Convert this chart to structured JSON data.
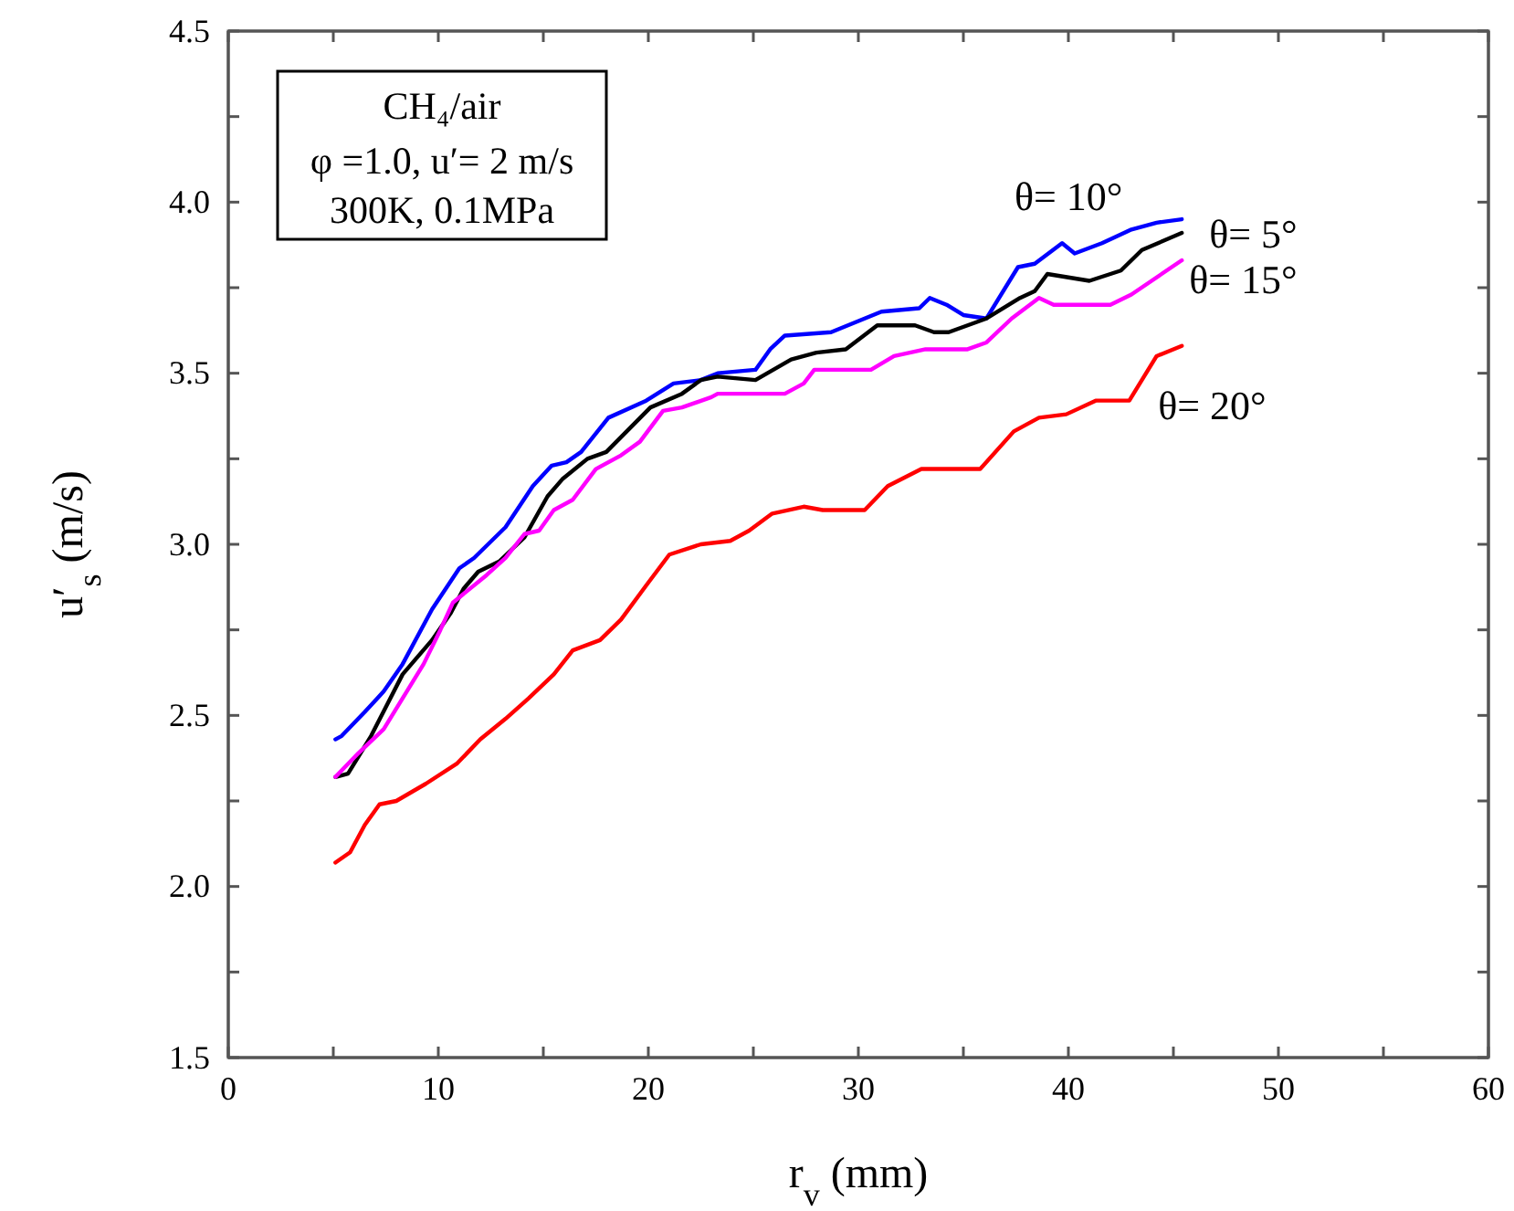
{
  "chart_data": {
    "type": "line",
    "xlabel": "r$_{v}$ (mm)",
    "ylabel": "u′$_{s}$ (m/s)",
    "xlim": [
      0,
      60
    ],
    "ylim": [
      1.5,
      4.5
    ],
    "xticks": [
      0,
      {
        "value": 5,
        "label": null
      },
      10,
      {
        "value": 15,
        "label": null
      },
      20,
      {
        "value": 25,
        "label": null
      },
      30,
      {
        "value": 35,
        "label": null
      },
      40,
      {
        "value": 45,
        "label": null
      },
      50,
      {
        "value": 55,
        "label": null
      },
      60
    ],
    "yticks": [
      1.5,
      {
        "value": 1.75,
        "label": null
      },
      {
        "value": 2,
        "label": "2.0"
      },
      {
        "value": 2.25,
        "label": null
      },
      2.5,
      {
        "value": 2.75,
        "label": null
      },
      {
        "value": 3,
        "label": "3.0"
      },
      {
        "value": 3.25,
        "label": null
      },
      3.5,
      {
        "value": 3.75,
        "label": null
      },
      {
        "value": 4,
        "label": "4.0"
      },
      {
        "value": 4.25,
        "label": null
      },
      4.5
    ],
    "grid": false,
    "legend": false,
    "marker": "none",
    "line_style": "solid",
    "annotations": [
      "CH₄/air",
      "φ =1.0, u′= 2 m/s",
      "300K, 0.1MPa"
    ],
    "series": [
      {
        "name": "θ= 10°",
        "color": "#0000ff",
        "x": [
          5.1,
          5.4,
          6.5,
          7.4,
          8.3,
          9.7,
          11.0,
          11.7,
          13.2,
          14.5,
          15.4,
          16.1,
          16.8,
          18.1,
          19.9,
          21.2,
          22.5,
          23.3,
          25.1,
          25.8,
          26.5,
          28.7,
          31.1,
          32.9,
          33.4,
          34.2,
          35.0,
          36.1,
          37.6,
          38.4,
          39.7,
          40.3,
          41.6,
          43.0,
          44.2,
          45.4
        ],
        "values": [
          2.43,
          2.44,
          2.51,
          2.57,
          2.65,
          2.81,
          2.93,
          2.96,
          3.05,
          3.17,
          3.23,
          3.24,
          3.27,
          3.37,
          3.42,
          3.47,
          3.48,
          3.5,
          3.51,
          3.57,
          3.61,
          3.62,
          3.68,
          3.69,
          3.72,
          3.7,
          3.67,
          3.66,
          3.81,
          3.82,
          3.88,
          3.85,
          3.88,
          3.92,
          3.94,
          3.95
        ]
      },
      {
        "name": "θ= 5°",
        "color": "#000000",
        "x": [
          5.1,
          5.7,
          6.8,
          8.3,
          9.7,
          10.6,
          11.2,
          11.9,
          12.9,
          14.1,
          15.2,
          15.9,
          17.1,
          18.0,
          20.1,
          21.6,
          22.5,
          23.3,
          25.1,
          26.8,
          28.0,
          29.4,
          30.9,
          32.7,
          33.6,
          34.3,
          36.1,
          37.7,
          38.4,
          39.0,
          41.0,
          42.5,
          43.5,
          45.4
        ],
        "values": [
          2.32,
          2.33,
          2.44,
          2.62,
          2.72,
          2.8,
          2.87,
          2.92,
          2.95,
          3.02,
          3.14,
          3.19,
          3.25,
          3.27,
          3.4,
          3.44,
          3.48,
          3.49,
          3.48,
          3.54,
          3.56,
          3.57,
          3.64,
          3.64,
          3.62,
          3.62,
          3.66,
          3.72,
          3.74,
          3.79,
          3.77,
          3.8,
          3.86,
          3.91
        ]
      },
      {
        "name": "θ= 15°",
        "color": "#ff00ff",
        "x": [
          5.1,
          6.2,
          7.4,
          8.5,
          9.3,
          10.1,
          10.7,
          12.3,
          13.2,
          14.1,
          14.8,
          15.5,
          16.4,
          17.5,
          18.7,
          19.6,
          20.7,
          21.6,
          23.0,
          23.3,
          26.5,
          27.4,
          27.9,
          30.6,
          31.7,
          33.2,
          35.2,
          36.1,
          37.3,
          38.6,
          39.3,
          42.0,
          43.0,
          45.4
        ],
        "values": [
          2.32,
          2.39,
          2.46,
          2.57,
          2.65,
          2.75,
          2.83,
          2.91,
          2.96,
          3.03,
          3.04,
          3.1,
          3.13,
          3.22,
          3.26,
          3.3,
          3.39,
          3.4,
          3.43,
          3.44,
          3.44,
          3.47,
          3.51,
          3.51,
          3.55,
          3.57,
          3.57,
          3.59,
          3.66,
          3.72,
          3.7,
          3.7,
          3.73,
          3.83
        ]
      },
      {
        "name": "θ= 20°",
        "color": "#ff0000",
        "x": [
          5.1,
          5.8,
          6.5,
          7.2,
          8.0,
          9.4,
          10.9,
          12.0,
          13.2,
          14.3,
          15.5,
          16.4,
          17.7,
          18.7,
          19.9,
          21.0,
          22.5,
          23.9,
          24.8,
          25.9,
          27.4,
          28.3,
          30.3,
          31.4,
          33.0,
          35.8,
          37.4,
          38.6,
          39.9,
          41.3,
          42.9,
          44.2,
          45.4
        ],
        "values": [
          2.07,
          2.1,
          2.18,
          2.24,
          2.25,
          2.3,
          2.36,
          2.43,
          2.49,
          2.55,
          2.62,
          2.69,
          2.72,
          2.78,
          2.88,
          2.97,
          3.0,
          3.01,
          3.04,
          3.09,
          3.11,
          3.1,
          3.1,
          3.17,
          3.22,
          3.22,
          3.33,
          3.37,
          3.38,
          3.42,
          3.42,
          3.55,
          3.58
        ]
      }
    ]
  }
}
